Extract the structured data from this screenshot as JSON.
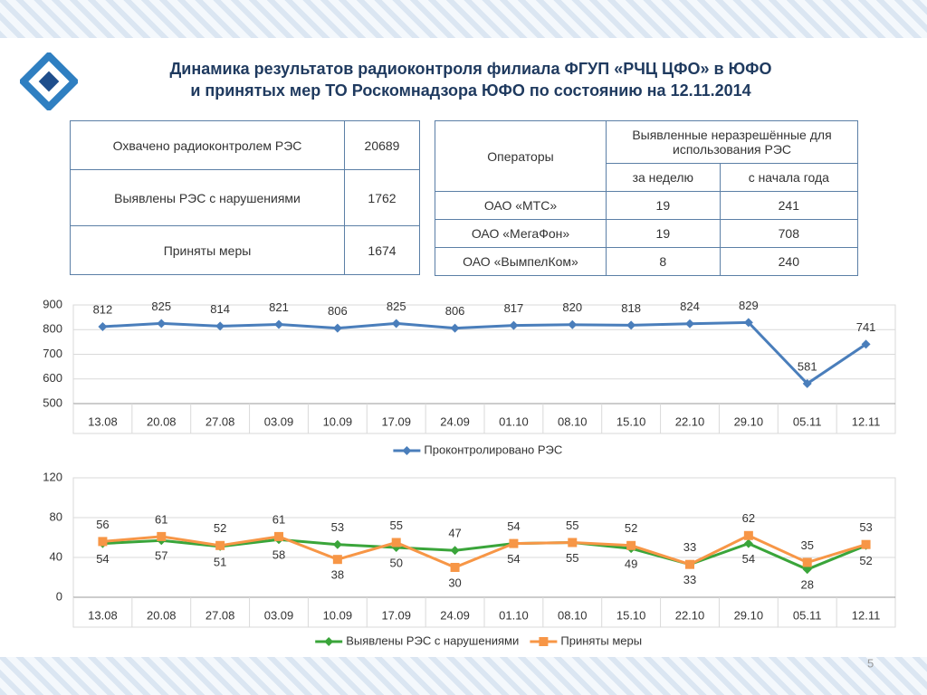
{
  "title_lines": [
    "Динамика результатов радиоконтроля филиала ФГУП «РЧЦ ЦФО» в ЮФО",
    "и принятых мер ТО Роскомнадзора ЮФО по состоянию на 12.11.2014"
  ],
  "table_left": {
    "rows": [
      [
        "Охвачено радиоконтролем РЭС",
        20689
      ],
      [
        "Выявлены РЭС с нарушениями",
        1762
      ],
      [
        "Приняты меры",
        1674
      ]
    ]
  },
  "table_right": {
    "header": {
      "operators": "Операторы",
      "group": "Выявленные неразрешённые для использования РЭС",
      "sub": [
        "за неделю",
        "с начала года"
      ]
    },
    "rows": [
      [
        "ОАО «МТС»",
        19,
        241
      ],
      [
        "ОАО «МегаФон»",
        19,
        708
      ],
      [
        "ОАО «ВымпелКом»",
        8,
        240
      ]
    ]
  },
  "page_number": 5,
  "chart_data": [
    {
      "type": "line",
      "categories": [
        "13.08",
        "20.08",
        "27.08",
        "03.09",
        "10.09",
        "17.09",
        "24.09",
        "01.10",
        "08.10",
        "15.10",
        "22.10",
        "29.10",
        "05.11",
        "12.11"
      ],
      "series": [
        {
          "name": "Проконтролировано РЭС",
          "color": "#4a7ebb",
          "marker": "diamond",
          "values": [
            812,
            825,
            814,
            821,
            806,
            825,
            806,
            817,
            820,
            818,
            824,
            829,
            581,
            741
          ]
        }
      ],
      "ylim": [
        500,
        900
      ],
      "yticks": [
        500,
        600,
        700,
        800,
        900
      ],
      "grid": true,
      "legend": "bottom"
    },
    {
      "type": "line",
      "categories": [
        "13.08",
        "20.08",
        "27.08",
        "03.09",
        "10.09",
        "17.09",
        "24.09",
        "01.10",
        "08.10",
        "15.10",
        "22.10",
        "29.10",
        "05.11",
        "12.11"
      ],
      "series": [
        {
          "name": "Выявлены РЭС с нарушениями",
          "color": "#3aa53a",
          "marker": "diamond",
          "values": [
            54,
            57,
            51,
            58,
            53,
            50,
            47,
            54,
            55,
            49,
            33,
            54,
            28,
            52
          ]
        },
        {
          "name": "Приняты меры",
          "color": "#f79646",
          "marker": "square",
          "values": [
            56,
            61,
            52,
            61,
            38,
            55,
            30,
            54,
            55,
            52,
            33,
            62,
            35,
            53
          ]
        }
      ],
      "ylim": [
        0,
        120
      ],
      "yticks": [
        0,
        40,
        80,
        120
      ],
      "grid": true,
      "legend": "bottom"
    }
  ]
}
